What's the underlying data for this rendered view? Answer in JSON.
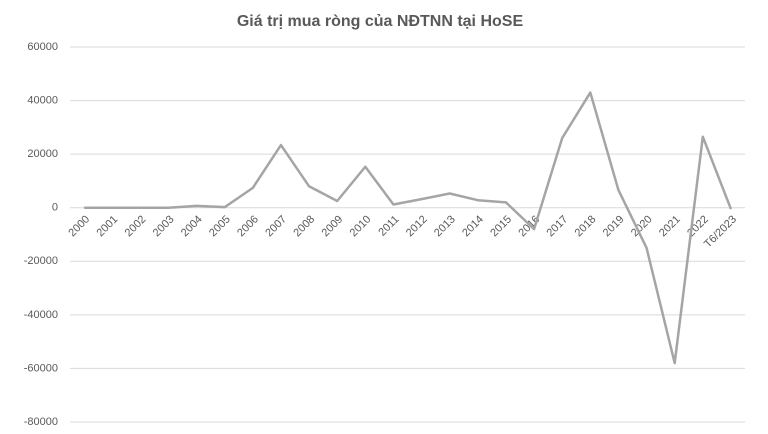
{
  "chart_data": {
    "type": "line",
    "title": "Giá trị mua ròng của NĐTNN tại HoSE",
    "categories": [
      "2000",
      "2001",
      "2002",
      "2003",
      "2004",
      "2005",
      "2006",
      "2007",
      "2008",
      "2009",
      "2010",
      "2011",
      "2012",
      "2013",
      "2014",
      "2015",
      "2016",
      "2017",
      "2018",
      "2019",
      "2020",
      "2021",
      "2022",
      "T6/2023"
    ],
    "values": [
      0,
      0,
      0,
      0,
      700,
      200,
      7400,
      23400,
      8000,
      2500,
      15300,
      1200,
      3200,
      5300,
      2800,
      2000,
      -8000,
      26000,
      43000,
      6600,
      -15000,
      -58000,
      26500,
      -500
    ],
    "color": "#a5a5a5",
    "ylim": [
      -80000,
      60000
    ],
    "yticks": [
      -80000,
      -60000,
      -40000,
      -20000,
      0,
      20000,
      40000,
      60000
    ],
    "grid": true
  }
}
